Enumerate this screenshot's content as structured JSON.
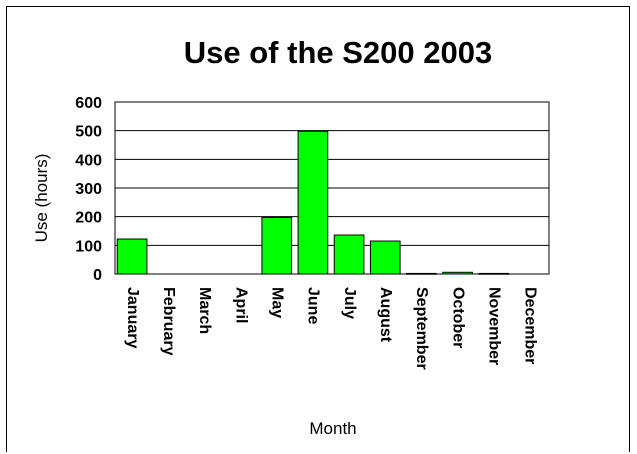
{
  "chart_data": {
    "type": "bar",
    "title": "Use of the S200 2003",
    "xlabel": "Month",
    "ylabel": "Use (hours)",
    "ylim": [
      0,
      600
    ],
    "yticks": [
      0,
      100,
      200,
      300,
      400,
      500,
      600
    ],
    "grid": true,
    "legend": false,
    "categories": [
      "January",
      "February",
      "March",
      "April",
      "May",
      "June",
      "July",
      "August",
      "September",
      "October",
      "November",
      "December"
    ],
    "values": [
      122,
      0,
      0,
      0,
      197,
      498,
      136,
      115,
      2,
      6,
      2,
      0
    ],
    "bar_color": "#00ff00"
  }
}
